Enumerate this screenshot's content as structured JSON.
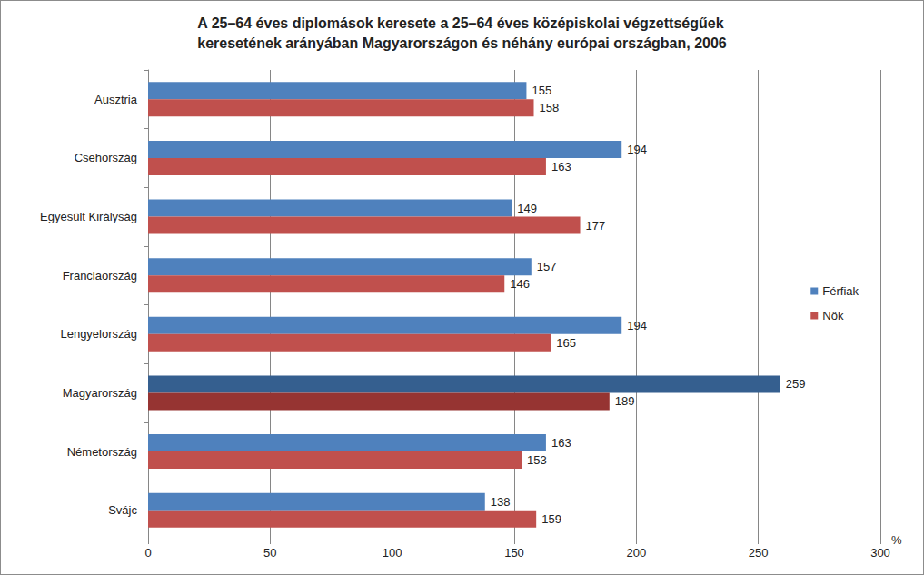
{
  "chart_data": {
    "type": "bar",
    "orientation": "horizontal",
    "title": "A 25–64 éves diplomások keresete a 25–64 éves középiskolai végzettségűek\nkeresetének arányában Magyarországon és néhány európai országban, 2006",
    "xlabel": "%",
    "categories": [
      "Ausztria",
      "Csehország",
      "Egyesült Királyság",
      "Franciaország",
      "Lengyelország",
      "Magyarország",
      "Németország",
      "Svájc"
    ],
    "series": [
      {
        "name": "Férfiak",
        "color": "#4f81bd",
        "colors": [
          "#4f81bd",
          "#4f81bd",
          "#4f81bd",
          "#4f81bd",
          "#4f81bd",
          "#355f8f",
          "#4f81bd",
          "#4f81bd"
        ],
        "values": [
          155,
          194,
          149,
          157,
          194,
          259,
          163,
          138
        ]
      },
      {
        "name": "Nők",
        "color": "#c0504d",
        "colors": [
          "#c0504d",
          "#c0504d",
          "#c0504d",
          "#c0504d",
          "#c0504d",
          "#963432",
          "#c0504d",
          "#c0504d"
        ],
        "values": [
          158,
          163,
          177,
          146,
          165,
          189,
          153,
          159
        ]
      }
    ],
    "xlim": [
      0,
      300
    ],
    "xticks": [
      0,
      50,
      100,
      150,
      200,
      250,
      300
    ],
    "grid": true,
    "legend": "right",
    "data_labels": true
  }
}
